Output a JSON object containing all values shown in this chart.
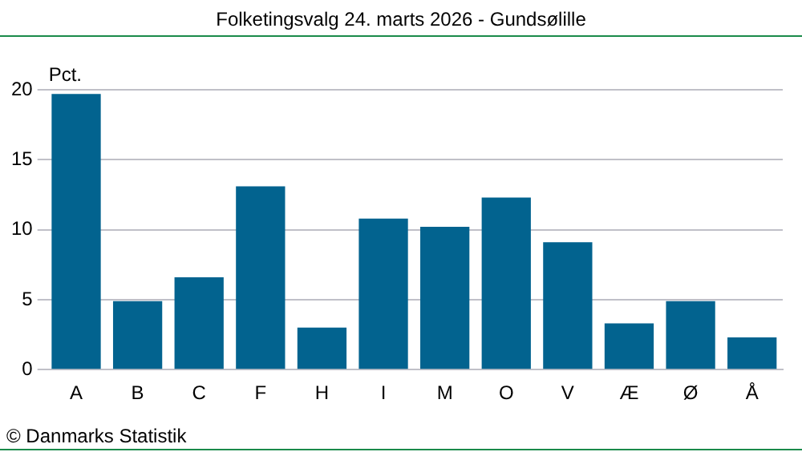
{
  "chart_data": {
    "type": "bar",
    "title": "Folketingsvalg 24. marts 2026 - Gundsølille",
    "ylabel": "Pct.",
    "categories": [
      "A",
      "B",
      "C",
      "F",
      "H",
      "I",
      "M",
      "O",
      "V",
      "Æ",
      "Ø",
      "Å"
    ],
    "values": [
      19.7,
      4.9,
      6.6,
      13.1,
      3.0,
      10.8,
      10.2,
      12.3,
      9.1,
      3.3,
      4.9,
      2.3
    ],
    "color": "#02638f",
    "ylim": [
      0,
      20
    ],
    "yticks": [
      0,
      5,
      10,
      15,
      20
    ],
    "grid": "y",
    "legend": false,
    "annotations": [
      "© Danmarks Statistik"
    ]
  }
}
